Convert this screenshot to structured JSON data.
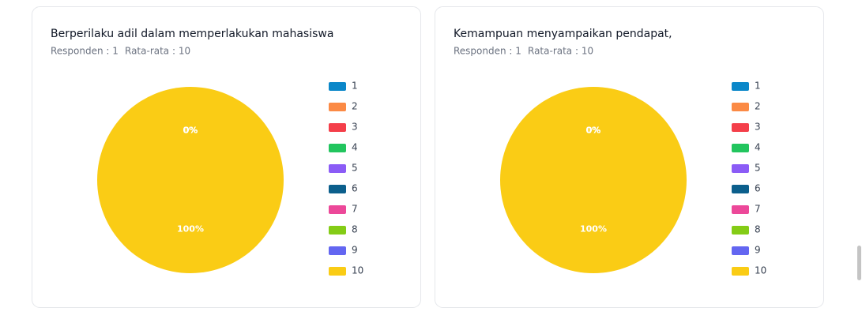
{
  "chart_data": [
    {
      "type": "pie",
      "title": "Berperilaku adil dalam memperlakukan mahasiswa",
      "respondents": "Responden : 1",
      "average": "Rata-rata : 10",
      "categories": [
        "1",
        "2",
        "3",
        "4",
        "5",
        "6",
        "7",
        "8",
        "9",
        "10"
      ],
      "values": [
        0,
        0,
        0,
        0,
        0,
        0,
        0,
        0,
        0,
        100
      ],
      "value_labels": [
        "0%",
        "0%",
        "0%",
        "0%",
        "0%",
        "0%",
        "0%",
        "0%",
        "0%",
        "100%"
      ],
      "colors": [
        "#0b87c9",
        "#fb8a45",
        "#f43f4a",
        "#22c55e",
        "#8b5cf6",
        "#0c5f8c",
        "#ec4899",
        "#84cc16",
        "#6366f1",
        "#facc15"
      ],
      "legend": "right"
    },
    {
      "type": "pie",
      "title": "Kemampuan menyampaikan pendapat,",
      "respondents": "Responden : 1",
      "average": "Rata-rata : 10",
      "categories": [
        "1",
        "2",
        "3",
        "4",
        "5",
        "6",
        "7",
        "8",
        "9",
        "10"
      ],
      "values": [
        0,
        0,
        0,
        0,
        0,
        0,
        0,
        0,
        0,
        100
      ],
      "value_labels": [
        "0%",
        "0%",
        "0%",
        "0%",
        "0%",
        "0%",
        "0%",
        "0%",
        "0%",
        "100%"
      ],
      "colors": [
        "#0b87c9",
        "#fb8a45",
        "#f43f4a",
        "#22c55e",
        "#8b5cf6",
        "#0c5f8c",
        "#ec4899",
        "#84cc16",
        "#6366f1",
        "#facc15"
      ],
      "legend": "right"
    }
  ]
}
